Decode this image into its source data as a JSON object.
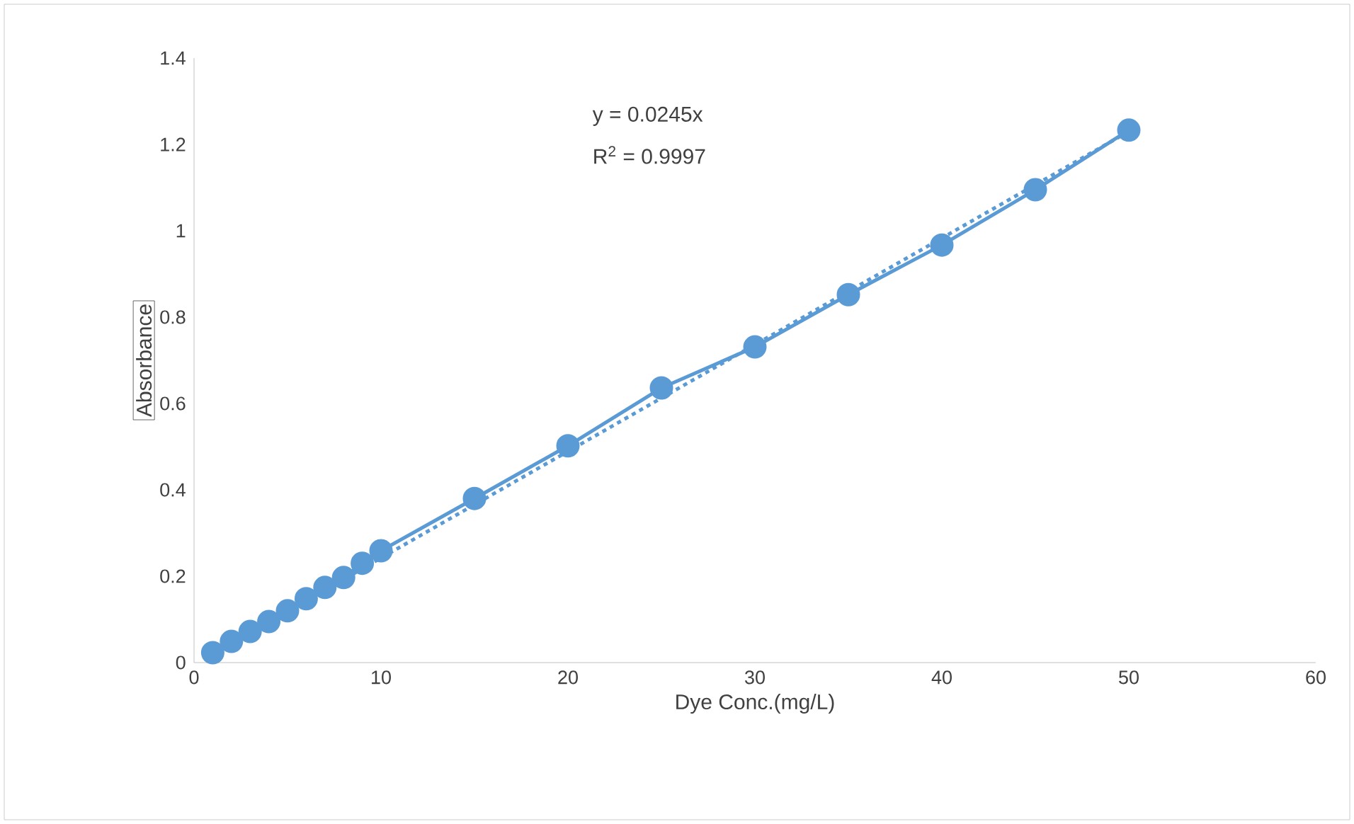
{
  "chart_data": {
    "type": "line",
    "xlabel": "Dye Conc.(mg/L)",
    "ylabel": "Absorbance",
    "xlim": [
      0,
      60
    ],
    "xticks": [
      0,
      10,
      20,
      30,
      40,
      50,
      60
    ],
    "ylim": [
      0,
      1.4
    ],
    "yticks": [
      0,
      0.2,
      0.4,
      0.6,
      0.8,
      1,
      1.2,
      1.4
    ],
    "grid": false,
    "marker": "circle",
    "series": [
      {
        "color": "#5b9bd5",
        "line_style": "solid",
        "x": [
          1,
          2,
          3,
          4,
          5,
          6,
          7,
          8,
          9,
          10,
          15,
          20,
          25,
          30,
          35,
          40,
          45,
          50
        ],
        "values": [
          0.023,
          0.049,
          0.072,
          0.095,
          0.12,
          0.148,
          0.174,
          0.197,
          0.23,
          0.259,
          0.38,
          0.502,
          0.636,
          0.731,
          0.852,
          0.967,
          1.095,
          1.233
        ]
      },
      {
        "type": "line",
        "color": "#5b9bd5",
        "marker": "none",
        "line_style": "dashed",
        "x": [
          1,
          50
        ],
        "values": [
          0.02,
          1.23
        ]
      }
    ],
    "annotations": [
      "y = 0.0245x",
      "R$^{2}$ = 0.9997"
    ]
  }
}
